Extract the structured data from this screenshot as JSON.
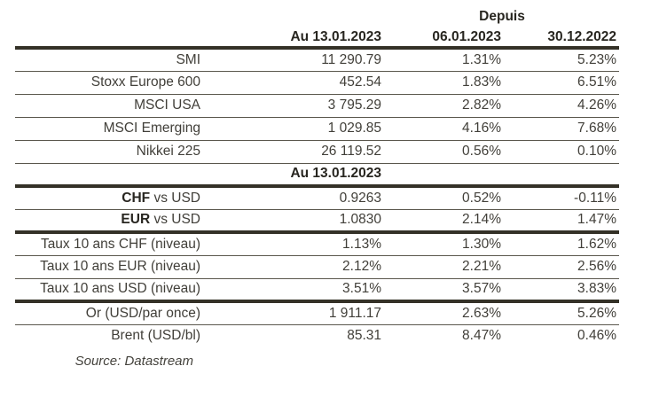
{
  "table": {
    "header": {
      "depuis_label": "Depuis",
      "col_date_main": "Au 13.01.2023",
      "col_date_since1": "06.01.2023",
      "col_date_since2": "30.12.2022"
    },
    "rows": [
      {
        "label": "SMI",
        "values": [
          "11 290.79",
          "1.31%",
          "5.23%"
        ],
        "divider": "thin"
      },
      {
        "label": "Stoxx Europe 600",
        "values": [
          "452.54",
          "1.83%",
          "6.51%"
        ],
        "divider": "thin"
      },
      {
        "label": "MSCI USA",
        "values": [
          "3 795.29",
          "2.82%",
          "4.26%"
        ],
        "divider": "thin"
      },
      {
        "label": "MSCI Emerging",
        "values": [
          "1 029.85",
          "4.16%",
          "7.68%"
        ],
        "divider": "thin"
      },
      {
        "label": "Nikkei 225",
        "values": [
          "26 119.52",
          "0.56%",
          "0.10%"
        ],
        "divider": "thin"
      },
      {
        "is_section": true,
        "section_label": "Au 13.01.2023",
        "values": [
          "",
          "",
          ""
        ],
        "divider": "thick"
      },
      {
        "label_bold": "CHF",
        "label": " vs USD",
        "values": [
          "0.9263",
          "0.52%",
          "-0.11%"
        ],
        "divider": "thin"
      },
      {
        "label_bold": "EUR",
        "label": " vs USD",
        "values": [
          "1.0830",
          "2.14%",
          "1.47%"
        ],
        "divider": "thick"
      },
      {
        "label": "Taux 10 ans CHF (niveau)",
        "values": [
          "1.13%",
          "1.30%",
          "1.62%"
        ],
        "divider": "thin"
      },
      {
        "label": "Taux 10 ans EUR (niveau)",
        "values": [
          "2.12%",
          "2.21%",
          "2.56%"
        ],
        "divider": "thin"
      },
      {
        "label": "Taux 10 ans USD (niveau)",
        "values": [
          "3.51%",
          "3.57%",
          "3.83%"
        ],
        "divider": "thick"
      },
      {
        "label": "Or (USD/par once)",
        "values": [
          "1 911.17",
          "2.63%",
          "5.26%"
        ],
        "divider": "thin"
      },
      {
        "label": "Brent (USD/bl)",
        "values": [
          "85.31",
          "8.47%",
          "0.46%"
        ],
        "divider": "none"
      }
    ],
    "source": "Source: Datastream"
  },
  "colors": {
    "text": "#413f39",
    "text_strong": "#282620",
    "rule_thin": "#5a574d",
    "rule_thick": "#343127",
    "background": "#ffffff"
  }
}
